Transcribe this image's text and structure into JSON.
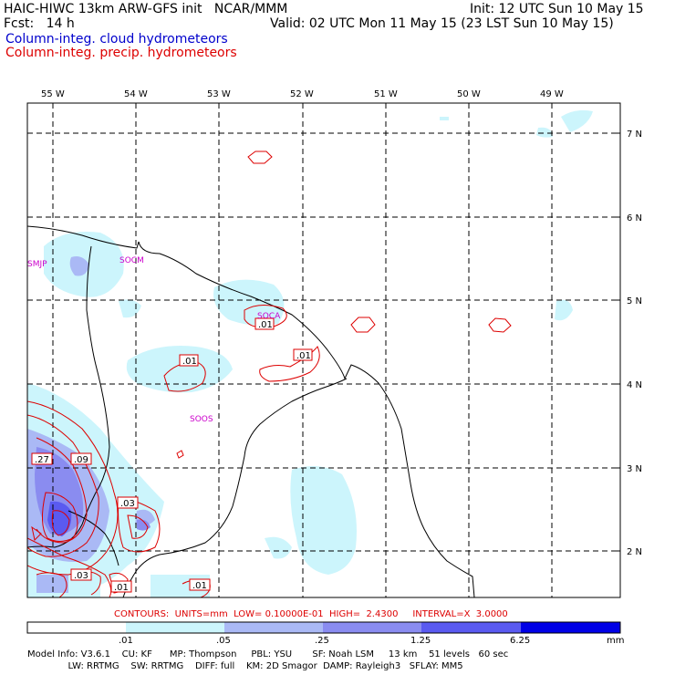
{
  "header": {
    "title": "HAIC-HIWC 13km ARW-GFS init   NCAR/MMM",
    "init": "Init: 12 UTC Sun 10 May 15",
    "fcst": "Fcst:   14 h",
    "valid": "Valid: 02 UTC Mon 11 May 15 (23 LST Sun 10 May 15)",
    "legend_cloud": "Column-integ. cloud hydrometeors",
    "legend_precip": "Column-integ. precip. hydrometeors",
    "legend_cloud_color": "#0000cc",
    "legend_precip_color": "#dd0000"
  },
  "map": {
    "lon_labels": [
      "55 W",
      "54 W",
      "53 W",
      "52 W",
      "51 W",
      "50 W",
      "49 W"
    ],
    "lat_labels": [
      "7 N",
      "6 N",
      "5 N",
      "4 N",
      "3 N",
      "2 N"
    ],
    "stations": [
      "SMJP",
      "SOCM",
      "SOCA",
      "SOOS"
    ],
    "contour_labels": [
      ".01",
      ".01",
      ".01",
      ".27",
      ".09",
      ".03",
      ".03",
      ".01",
      ".01"
    ],
    "precip_contour_color": "#dd0000",
    "coast_color": "#000000",
    "grid_color": "#000000"
  },
  "contours_info": "CONTOURS:  UNITS=mm  LOW= 0.10000E-01  HIGH=  2.4300     INTERVAL=X  3.0000",
  "colorbar": {
    "ticks": [
      ".01",
      ".05",
      ".25",
      "1.25",
      "6.25",
      "mm"
    ],
    "colors": [
      "#ffffff",
      "#ccf5fc",
      "#aab9f5",
      "#8a8cf0",
      "#5a5af0",
      "#0000e6"
    ]
  },
  "model_info": {
    "line1": "Model Info: V3.6.1    CU: KF      MP: Thompson     PBL: YSU       SF: Noah LSM     13 km    51 levels   60 sec",
    "line2": "              LW: RRTMG    SW: RRTMG    DIFF: full    KM: 2D Smagor  DAMP: Rayleigh3   SFLAY: MM5"
  }
}
